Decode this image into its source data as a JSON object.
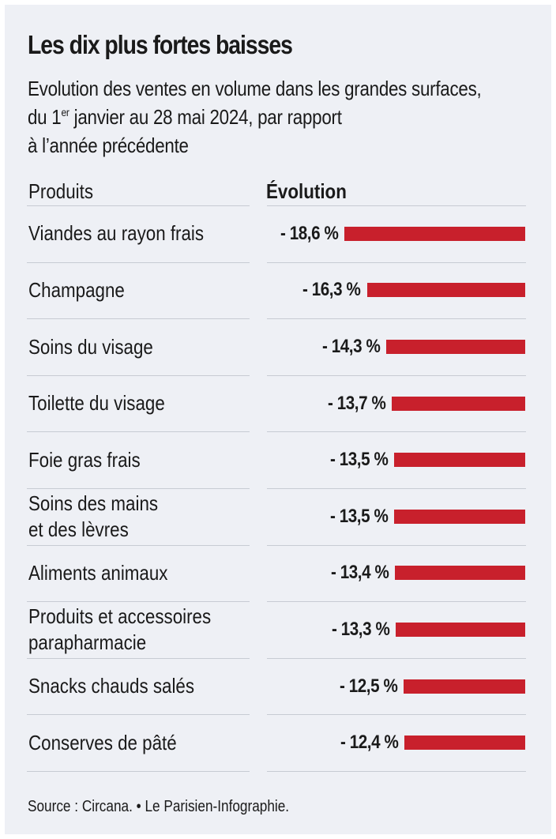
{
  "title": "Les dix plus fortes baisses",
  "subtitle": {
    "line1": "Evolution des ventes en volume dans les grandes surfaces,",
    "line2_pre": "du 1",
    "line2_sup": "er",
    "line2_post": " janvier au 28 mai 2024, par rapport",
    "line3": "à l’année précédente"
  },
  "columns": {
    "products": "Produits",
    "evolution": "Évolution"
  },
  "source": "Source : Circana.  • Le Parisien-Infographie.",
  "colors": {
    "bar": "#c8202c",
    "background": "#eef0f5"
  },
  "chart_data": {
    "type": "bar",
    "orientation": "horizontal",
    "categories": [
      "Viandes au rayon frais",
      "Champagne",
      "Soins du visage",
      "Toilette du visage",
      "Foie gras frais",
      "Soins des mains\net des lèvres",
      "Aliments animaux",
      "Produits et accessoires\nparapharmacie",
      "Snacks chauds salés",
      "Conserves de pâté"
    ],
    "values": [
      -18.6,
      -16.3,
      -14.3,
      -13.7,
      -13.5,
      -13.5,
      -13.4,
      -13.3,
      -12.5,
      -12.4
    ],
    "value_labels": [
      "- 18,6 %",
      "- 16,3 %",
      "- 14,3 %",
      "- 13,7 %",
      "- 13,5 %",
      "- 13,5 %",
      "- 13,4 %",
      "- 13,3 %",
      "- 12,5 %",
      "- 12,4 %"
    ],
    "unit": "%",
    "title": "Les dix plus fortes baisses",
    "xlabel": "Évolution",
    "ylabel": "Produits",
    "grid": false,
    "legend": "none"
  }
}
